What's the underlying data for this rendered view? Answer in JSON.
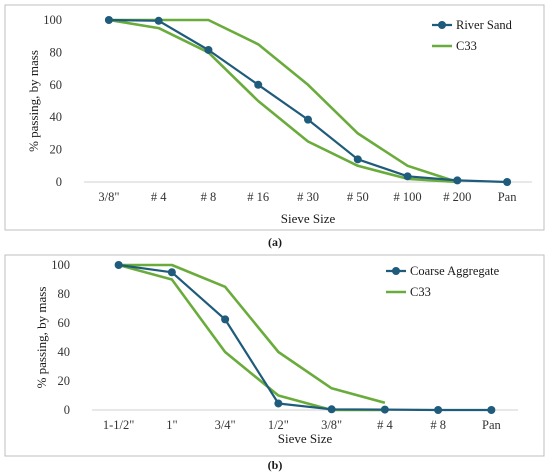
{
  "chart_data": [
    {
      "type": "line",
      "panel_label": "a",
      "categories": [
        "3/8\"",
        "# 4",
        "# 8",
        "# 16",
        "# 30",
        "# 50",
        "# 100",
        "# 200",
        "Pan"
      ],
      "xlabel": "Sieve Size",
      "ylabel": "% passing, by mass",
      "ylim": [
        0,
        100
      ],
      "yticks": [
        0,
        20,
        40,
        60,
        80,
        100
      ],
      "grid": false,
      "legend_position": "top-right",
      "series": [
        {
          "name": "River Sand",
          "color": "#1f5b7a",
          "marker": "circle",
          "values": [
            100,
            99.5,
            81.5,
            60,
            38.5,
            14,
            3.5,
            1,
            0
          ]
        },
        {
          "name": "C33",
          "color": "#6aac3c",
          "marker": "none",
          "band": true,
          "upper": [
            100,
            100,
            100,
            85,
            60,
            30,
            10,
            0
          ],
          "lower": [
            100,
            95,
            80,
            50,
            25,
            10,
            2,
            0
          ]
        }
      ]
    },
    {
      "type": "line",
      "panel_label": "b",
      "categories": [
        "1-1/2\"",
        "1\"",
        "3/4\"",
        "1/2\"",
        "3/8\"",
        "# 4",
        "# 8",
        "Pan"
      ],
      "xlabel": "Sieve Size",
      "ylabel": "% passing, by mass",
      "ylim": [
        0,
        100
      ],
      "yticks": [
        0,
        20,
        40,
        60,
        80,
        100
      ],
      "grid": false,
      "legend_position": "top-right",
      "series": [
        {
          "name": "Coarse Aggregate",
          "color": "#1f5b7a",
          "marker": "circle",
          "values": [
            100,
            95,
            62.5,
            4.5,
            0.5,
            0.3,
            0,
            0
          ]
        },
        {
          "name": "C33",
          "color": "#6aac3c",
          "marker": "none",
          "band": true,
          "upper": [
            100,
            100,
            85,
            40,
            15,
            5
          ],
          "lower": [
            100,
            90,
            40,
            10,
            0,
            0
          ]
        }
      ]
    }
  ],
  "captions": [
    "(a)",
    "(b)"
  ]
}
